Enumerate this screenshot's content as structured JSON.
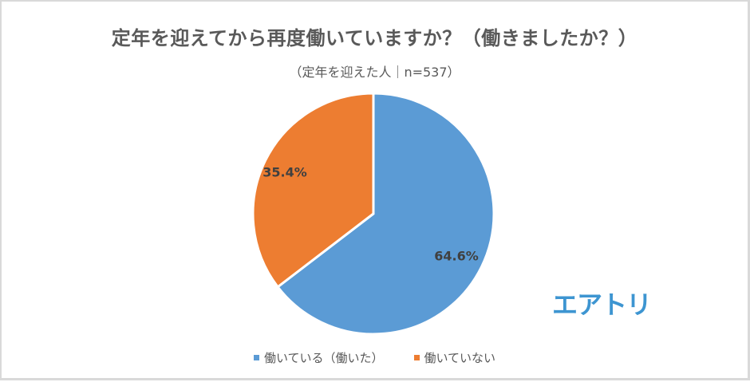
{
  "chart_data": {
    "type": "pie",
    "title": "定年を迎えてから再度働いていますか？（働きましたか？）",
    "subtitle": "（定年を迎えた人｜n=537）",
    "categories": [
      "働いている（働いた）",
      "働いていない"
    ],
    "values": [
      64.6,
      35.4
    ],
    "unit": "%",
    "colors": [
      "#5b9bd5",
      "#ed7d31"
    ],
    "data_labels": [
      "64.6%",
      "35.4%"
    ],
    "start_angle_deg": 0,
    "direction": "clockwise",
    "legend_position": "bottom",
    "sample_size": 537
  },
  "chart": {
    "title": "定年を迎えてから再度働いていますか？（働きましたか？）",
    "subtitle": "（定年を迎えた人｜n=537）",
    "slices": [
      {
        "label": "働いている（働いた）",
        "value": 64.6,
        "display": "64.6%",
        "color": "#5b9bd5"
      },
      {
        "label": "働いていない",
        "value": 35.4,
        "display": "35.4%",
        "color": "#ed7d31"
      }
    ],
    "legend": [
      {
        "label": "働いている（働いた）",
        "color": "#5b9bd5"
      },
      {
        "label": "働いていない",
        "color": "#ed7d31"
      }
    ]
  },
  "branding": {
    "logo_text": "エアトリ",
    "logo_color": "#3d95d1"
  }
}
